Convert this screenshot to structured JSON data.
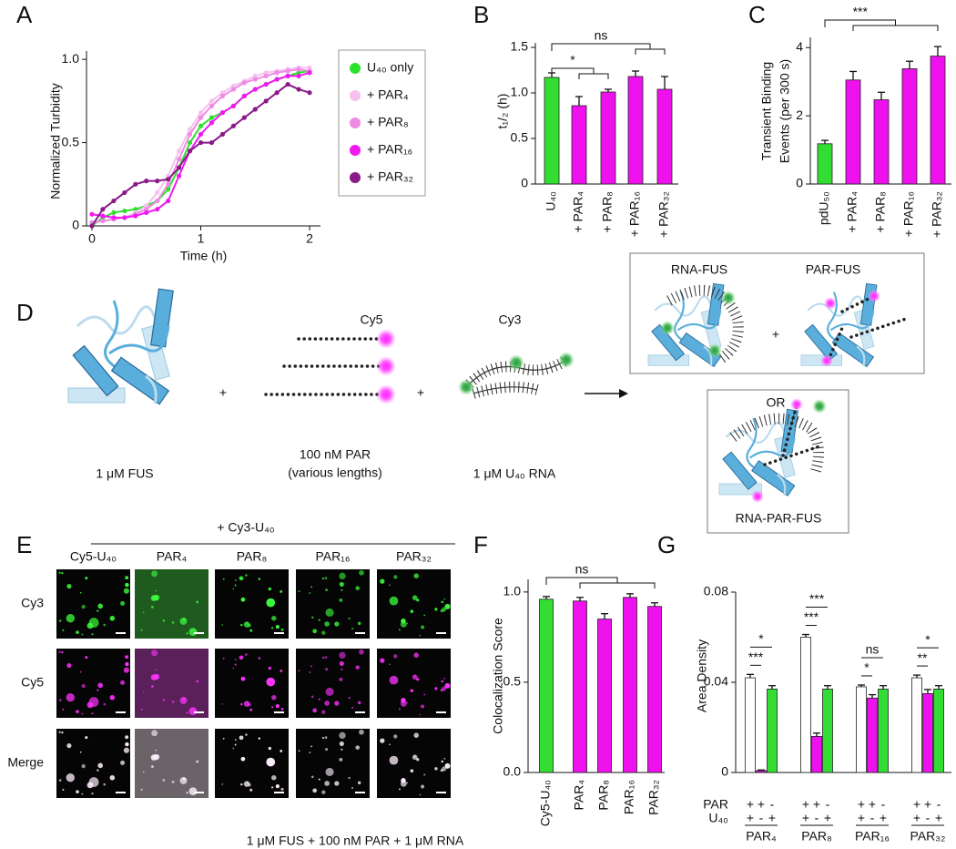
{
  "chart_data": [
    {
      "panel": "A",
      "type": "line",
      "xlabel": "Time (h)",
      "ylabel": "Normalized Turbidity",
      "x": [
        0,
        0.1,
        0.2,
        0.3,
        0.4,
        0.5,
        0.6,
        0.7,
        0.8,
        0.9,
        1.0,
        1.1,
        1.2,
        1.3,
        1.4,
        1.5,
        1.6,
        1.7,
        1.8,
        1.9,
        2.0
      ],
      "xlim": [
        -0.05,
        2.1
      ],
      "xticks": [
        0,
        1,
        2
      ],
      "ylim": [
        0,
        1.05
      ],
      "yticks": [
        0,
        0.5,
        {
          "value": 1,
          "label": "1.0"
        }
      ],
      "legend": "right",
      "series": [
        {
          "name": "U₄₀ only",
          "color": "#2ee02e",
          "values": [
            0,
            0.05,
            0.08,
            0.09,
            0.1,
            0.12,
            0.15,
            0.22,
            0.35,
            0.5,
            0.6,
            0.65,
            0.68,
            0.72,
            0.78,
            0.82,
            0.85,
            0.88,
            0.9,
            0.92,
            0.93
          ]
        },
        {
          "name": "+ PAR₄",
          "color": "#f5c2f0",
          "values": [
            0.02,
            0.03,
            0.04,
            0.05,
            0.08,
            0.12,
            0.2,
            0.3,
            0.45,
            0.58,
            0.68,
            0.75,
            0.8,
            0.84,
            0.87,
            0.9,
            0.92,
            0.93,
            0.94,
            0.95,
            0.95
          ]
        },
        {
          "name": "+ PAR₈",
          "color": "#ee8be3",
          "values": [
            0.02,
            0.03,
            0.04,
            0.05,
            0.07,
            0.1,
            0.15,
            0.25,
            0.4,
            0.55,
            0.65,
            0.72,
            0.78,
            0.82,
            0.86,
            0.88,
            0.9,
            0.92,
            0.93,
            0.94,
            0.93
          ]
        },
        {
          "name": "+ PAR₁₆",
          "color": "#f019f0",
          "values": [
            0.07,
            0.06,
            0.05,
            0.05,
            0.06,
            0.08,
            0.1,
            0.15,
            0.3,
            0.45,
            0.55,
            0.62,
            0.68,
            0.72,
            0.78,
            0.82,
            0.85,
            0.88,
            0.9,
            0.9,
            0.92
          ]
        },
        {
          "name": "+ PAR₃₂",
          "color": "#8a1a88",
          "values": [
            0,
            0.1,
            0.15,
            0.2,
            0.25,
            0.27,
            0.27,
            0.28,
            0.35,
            0.45,
            0.5,
            0.5,
            0.55,
            0.6,
            0.65,
            0.7,
            0.75,
            0.8,
            0.85,
            0.82,
            0.8
          ]
        }
      ]
    },
    {
      "panel": "B",
      "type": "bar",
      "ylabel": "t₁/₂ (h)",
      "categories": [
        "U₄₀",
        "+ PAR₄",
        "+ PAR₈",
        "+ PAR₁₆",
        "+ PAR₃₂"
      ],
      "values": [
        1.17,
        0.86,
        1.01,
        1.18,
        1.04
      ],
      "errors": [
        0.05,
        0.1,
        0.03,
        0.06,
        0.14
      ],
      "colors": [
        "#33dd33",
        "#ee11ee",
        "#ee11ee",
        "#ee11ee",
        "#ee11ee"
      ],
      "ylim": [
        0,
        1.55
      ],
      "yticks": [
        0,
        0.5,
        {
          "value": 1,
          "label": "1.0"
        },
        1.5
      ],
      "annotations": [
        "ns",
        "*"
      ]
    },
    {
      "panel": "C",
      "type": "bar",
      "ylabel": [
        "Transient Binding",
        "Events (per 300 s)"
      ],
      "categories": [
        "pdU₅₀",
        "+ PAR₄",
        "+ PAR₈",
        "+ PAR₁₆",
        "+ PAR₃₂"
      ],
      "values": [
        1.18,
        3.05,
        2.47,
        3.38,
        3.75
      ],
      "errors": [
        0.1,
        0.25,
        0.22,
        0.22,
        0.28
      ],
      "colors": [
        "#33dd33",
        "#ee11ee",
        "#ee11ee",
        "#ee11ee",
        "#ee11ee"
      ],
      "ylim": [
        0,
        4.3
      ],
      "yticks": [
        0,
        2,
        4
      ],
      "annotations": [
        "***"
      ]
    },
    {
      "panel": "F",
      "type": "bar",
      "ylabel": "Colocalization Score",
      "categories": [
        "Cy5-U₄₀",
        "PAR₄",
        "PAR₈",
        "PAR₁₆",
        "PAR₃₂"
      ],
      "values": [
        0.96,
        0.95,
        0.85,
        0.97,
        0.92
      ],
      "errors": [
        0.015,
        0.02,
        0.03,
        0.02,
        0.02
      ],
      "colors": [
        "#33dd33",
        "#ee11ee",
        "#ee11ee",
        "#ee11ee",
        "#ee11ee"
      ],
      "ylim": [
        0,
        1.07
      ],
      "yticks": [
        {
          "value": 0,
          "label": "0.0"
        },
        0.5,
        {
          "value": 1,
          "label": "1.0"
        }
      ],
      "annotations": [
        "ns"
      ]
    },
    {
      "panel": "G",
      "type": "grouped_bar",
      "ylabel": "Area Density",
      "categories": [
        "PAR₄",
        "PAR₈",
        "PAR₁₆",
        "PAR₃₂"
      ],
      "series": [
        {
          "color": "#ffffff",
          "values": [
            0.042,
            0.06,
            0.038,
            0.042
          ],
          "errors": [
            0.0015,
            0.0012,
            0.0008,
            0.0012
          ]
        },
        {
          "color": "#ee11ee",
          "values": [
            0.0008,
            0.016,
            0.033,
            0.035
          ],
          "errors": [
            0.0003,
            0.0015,
            0.0015,
            0.0018
          ]
        },
        {
          "color": "#33dd33",
          "values": [
            0.037,
            0.037,
            0.037,
            0.037
          ],
          "errors": [
            0.0015,
            0.0015,
            0.0015,
            0.0015
          ]
        }
      ],
      "ylim": [
        0,
        0.08
      ],
      "yticks": [
        0,
        0.04,
        0.08
      ],
      "annotations": [
        [
          "*",
          "***"
        ],
        [
          "***",
          "***"
        ],
        [
          "ns",
          "*"
        ],
        [
          "*",
          "**"
        ]
      ],
      "sign_rows": [
        {
          "label": "PAR",
          "signs": [
            "+",
            "+",
            "-"
          ]
        },
        {
          "label": "U₄₀",
          "signs": [
            "+",
            "-",
            "+"
          ]
        }
      ]
    }
  ],
  "diagram": {
    "panel": "D",
    "plus": "+",
    "cy5": "Cy5",
    "cy3": "Cy3",
    "fus": "1 μM FUS",
    "par": [
      "100 nM PAR",
      "(various lengths)"
    ],
    "rna": "1 μM U₄₀ RNA",
    "rna_fus": "RNA-FUS",
    "par_fus": "PAR-FUS",
    "or": "OR",
    "rna_par_fus": "RNA-PAR-FUS"
  },
  "micrographs": {
    "panel": "E",
    "treatment": "+ Cy3-U₄₀",
    "columns": [
      "Cy5-U₄₀",
      "PAR₄",
      "PAR₈",
      "PAR₁₆",
      "PAR₃₂"
    ],
    "rows": [
      "Cy3",
      "Cy5",
      "Merge"
    ],
    "caption": "1 μM FUS + 100 nM PAR + 1 μM RNA"
  }
}
